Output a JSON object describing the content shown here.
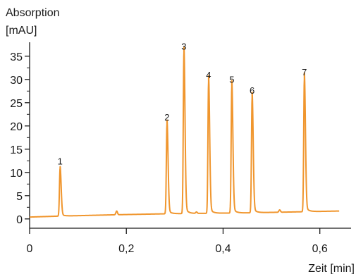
{
  "chart_data": {
    "type": "line",
    "ylabel_line1": "Absorption",
    "ylabel_line2": "[mAU]",
    "xlabel": "Zeit [min]",
    "xlim": [
      0,
      0.65
    ],
    "ylim": [
      -2,
      38
    ],
    "x_ticks": [
      {
        "value": 0,
        "label": "0"
      },
      {
        "value": 0.2,
        "label": "0,2"
      },
      {
        "value": 0.4,
        "label": "0,4"
      },
      {
        "value": 0.6,
        "label": "0,6"
      }
    ],
    "y_ticks": [
      {
        "value": 0,
        "label": "0"
      },
      {
        "value": 5,
        "label": "5"
      },
      {
        "value": 10,
        "label": "10"
      },
      {
        "value": 15,
        "label": "15"
      },
      {
        "value": 20,
        "label": "20"
      },
      {
        "value": 25,
        "label": "25"
      },
      {
        "value": 30,
        "label": "30"
      },
      {
        "value": 35,
        "label": "35"
      }
    ],
    "grid": false,
    "line_color": "#f0962e",
    "axis_color": "#1a1a1a",
    "baseline": [
      [
        0.0,
        0.4
      ],
      [
        0.06,
        0.6
      ],
      [
        0.18,
        0.9
      ],
      [
        0.28,
        1.1
      ],
      [
        0.45,
        1.3
      ],
      [
        0.64,
        1.7
      ]
    ],
    "bumps": [
      [
        0.18,
        0.8
      ],
      [
        0.345,
        0.3
      ],
      [
        0.517,
        0.5
      ]
    ],
    "peaks": [
      {
        "label": "1",
        "x": 0.063,
        "y": 10.8
      },
      {
        "label": "2",
        "x": 0.284,
        "y": 20.3
      },
      {
        "label": "3",
        "x": 0.319,
        "y": 35.5
      },
      {
        "label": "4",
        "x": 0.37,
        "y": 29.4
      },
      {
        "label": "5",
        "x": 0.418,
        "y": 28.4
      },
      {
        "label": "6",
        "x": 0.46,
        "y": 26.0
      },
      {
        "label": "7",
        "x": 0.568,
        "y": 30.0
      }
    ]
  }
}
